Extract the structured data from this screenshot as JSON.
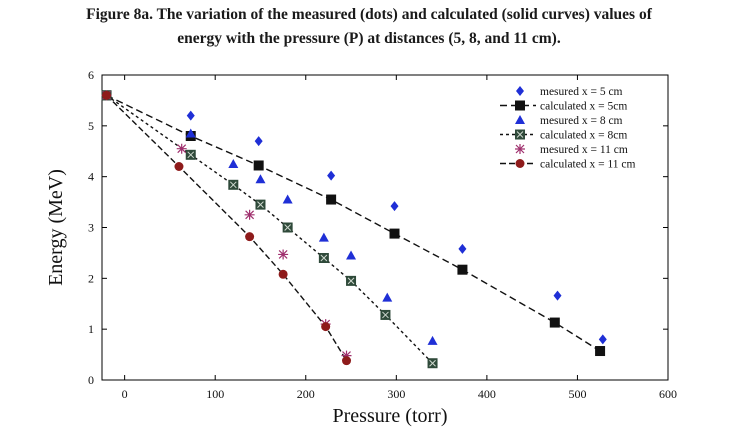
{
  "figure": {
    "caption_line1": "Figure 8a. The variation of the measured (dots) and calculated (solid curves) values of",
    "caption_line2": "energy with the pressure (P) at distances (5, 8, and 11 cm)."
  },
  "chart_data": {
    "type": "scatter",
    "xlabel": "Pressure (torr)",
    "ylabel": "Energy (MeV)",
    "xlim": [
      -25,
      600
    ],
    "ylim": [
      0,
      6
    ],
    "xticks": [
      0,
      100,
      200,
      300,
      400,
      500,
      600
    ],
    "yticks": [
      0,
      1,
      2,
      3,
      4,
      5,
      6
    ],
    "grid": false,
    "legend_position": "top-right",
    "series": [
      {
        "name": "mesured x = 5 cm",
        "kind": "measured",
        "marker": "diamond",
        "color": "#1f2fd6",
        "x": [
          -20,
          73,
          148,
          228,
          298,
          373,
          478,
          528
        ],
        "y": [
          5.6,
          5.2,
          4.7,
          4.02,
          3.42,
          2.58,
          1.66,
          0.8
        ]
      },
      {
        "name": "calculated x =  5cm",
        "kind": "calculated",
        "marker": "square",
        "color": "#111111",
        "dash": "7,4",
        "x": [
          -20,
          73,
          148,
          228,
          298,
          373,
          475,
          525
        ],
        "y": [
          5.6,
          4.8,
          4.22,
          3.55,
          2.88,
          2.17,
          1.13,
          0.57
        ]
      },
      {
        "name": "mesured x = 8 cm",
        "kind": "measured",
        "marker": "triangle",
        "color": "#1f2fd6",
        "x": [
          -20,
          73,
          120,
          150,
          180,
          220,
          250,
          290,
          340
        ],
        "y": [
          5.6,
          4.85,
          4.25,
          3.95,
          3.55,
          2.8,
          2.45,
          1.62,
          0.77
        ]
      },
      {
        "name": "calculated x =  8cm",
        "kind": "calculated",
        "marker": "x-square",
        "color": "#2f4a3a",
        "dash": "3,3",
        "x": [
          -20,
          73,
          120,
          150,
          180,
          220,
          250,
          288,
          340
        ],
        "y": [
          5.6,
          4.43,
          3.84,
          3.45,
          3.0,
          2.4,
          1.95,
          1.28,
          0.33
        ]
      },
      {
        "name": "mesured x = 11 cm",
        "kind": "measured",
        "marker": "asterisk",
        "color": "#a0306e",
        "x": [
          -20,
          63,
          138,
          175,
          222,
          245
        ],
        "y": [
          5.6,
          4.55,
          3.25,
          2.47,
          1.1,
          0.48
        ]
      },
      {
        "name": "calculated x = 11 cm",
        "kind": "calculated",
        "marker": "circle",
        "color": "#8e1b1b",
        "dash": "6,3",
        "x": [
          -20,
          60,
          138,
          175,
          222,
          245
        ],
        "y": [
          5.6,
          4.2,
          2.82,
          2.08,
          1.05,
          0.38
        ]
      }
    ]
  }
}
